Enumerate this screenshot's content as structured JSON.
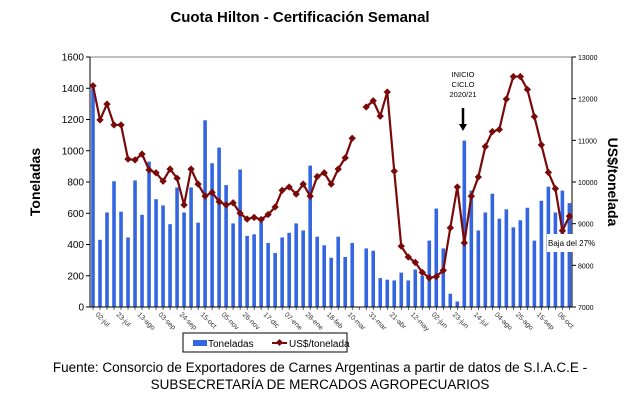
{
  "chart_data": {
    "type": "bar+line",
    "title": "Cuota Hilton - Certificación Semanal",
    "ylabel": "Toneladas",
    "y2label": "US$/tonelada",
    "ylim": [
      0,
      1600
    ],
    "y2lim": [
      7000,
      13000
    ],
    "yticks": [
      "0",
      "200",
      "400",
      "600",
      "800",
      "1000",
      "1200",
      "1400",
      "1600"
    ],
    "y2ticks": [
      "7000",
      "8000",
      "9000",
      "10000",
      "11000",
      "12000",
      "13000"
    ],
    "xtick_labels": [
      "02-jul",
      "23-jul",
      "13-ago",
      "03-sep",
      "24-sep",
      "15-oct",
      "05-nov",
      "26-nov",
      "17-dic",
      "07-ene",
      "28-ene",
      "18-feb",
      "10-mar",
      "31-mar",
      "21-abr",
      "12-may",
      "02-jun",
      "23-jun",
      "14-jul",
      "04-ago",
      "25-ago",
      "15-sep",
      "06-oct"
    ],
    "xtick_every": 3,
    "series": [
      {
        "name": "Toneladas",
        "type": "bar",
        "axis": "left",
        "color": "#3366e0",
        "values": [
          1400,
          430,
          605,
          805,
          610,
          445,
          810,
          590,
          930,
          690,
          650,
          530,
          765,
          605,
          765,
          540,
          1195,
          920,
          1020,
          780,
          535,
          880,
          455,
          465,
          545,
          410,
          345,
          445,
          475,
          535,
          490,
          905,
          450,
          395,
          315,
          450,
          320,
          410,
          0,
          375,
          360,
          185,
          175,
          170,
          220,
          170,
          240,
          200,
          425,
          630,
          375,
          85,
          35,
          1065,
          745,
          490,
          605,
          725,
          565,
          625,
          510,
          555,
          635,
          425,
          680,
          770,
          605,
          745,
          665
        ]
      },
      {
        "name": "US$/tonelada",
        "type": "line",
        "axis": "right",
        "color": "#7a0a0a",
        "values": [
          12310,
          11490,
          11870,
          11370,
          11370,
          10550,
          10530,
          10670,
          10290,
          10220,
          10020,
          10310,
          10090,
          9450,
          10310,
          9950,
          9660,
          9750,
          9530,
          9450,
          9500,
          9250,
          9110,
          9150,
          9100,
          9220,
          9400,
          9800,
          9880,
          9710,
          9950,
          9660,
          10130,
          10220,
          9950,
          10310,
          10580,
          11050,
          null,
          11800,
          11950,
          11580,
          12160,
          10260,
          8460,
          8200,
          8070,
          7830,
          7700,
          7730,
          7880,
          8900,
          9880,
          8540,
          9660,
          10120,
          10850,
          11210,
          11260,
          11990,
          12530,
          12530,
          12220,
          11570,
          10890,
          10230,
          9840,
          8830,
          9180
        ]
      }
    ],
    "annotations": [
      {
        "text_lines": [
          "INICIO",
          "CICLO",
          "2020/21"
        ],
        "at_index": 53
      },
      {
        "text": "Baja del 27%",
        "at_index": 66
      }
    ],
    "legend": {
      "position": "bottom-center",
      "items": [
        "Toneladas",
        "US$/tonelada"
      ]
    },
    "grid": false
  },
  "source": {
    "line1": "Fuente:  Consorcio de Exportadores de Carnes Argentinas a partir de datos de S.I.A.C.E -",
    "line2": "SUBSECRETARÍA  DE MERCADOS  AGROPECUARIOS"
  }
}
